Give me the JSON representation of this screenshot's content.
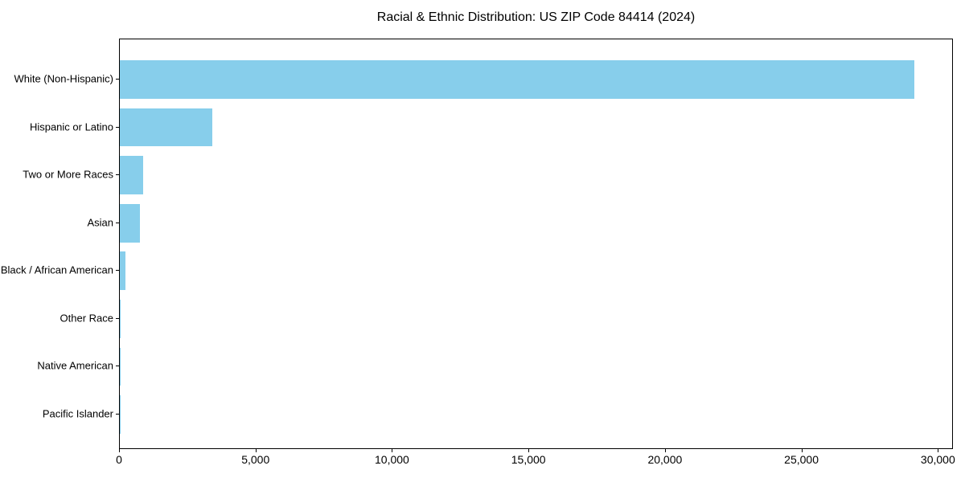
{
  "colors": {
    "bar": "#87CEEB",
    "axis": "#000000",
    "text": "#000000",
    "background": "#FFFFFF"
  },
  "chart_data": {
    "type": "bar",
    "orientation": "horizontal",
    "title": "Racial & Ethnic Distribution: US ZIP Code 84414 (2024)",
    "categories": [
      "White (Non-Hispanic)",
      "Hispanic or Latino",
      "Two or More Races",
      "Asian",
      "Black / African American",
      "Other Race",
      "Native American",
      "Pacific Islander"
    ],
    "values": [
      29100,
      3400,
      850,
      740,
      210,
      40,
      15,
      8
    ],
    "xlabel": "",
    "ylabel": "",
    "xlim": [
      0,
      30550
    ],
    "x_ticks": [
      {
        "value": 0,
        "label": "0"
      },
      {
        "value": 5000,
        "label": "5,000"
      },
      {
        "value": 10000,
        "label": "10,000"
      },
      {
        "value": 15000,
        "label": "15,000"
      },
      {
        "value": 20000,
        "label": "20,000"
      },
      {
        "value": 25000,
        "label": "25,000"
      },
      {
        "value": 30000,
        "label": "30,000"
      }
    ],
    "grid": false,
    "legend": "none",
    "bars_top_to_bottom": true
  }
}
